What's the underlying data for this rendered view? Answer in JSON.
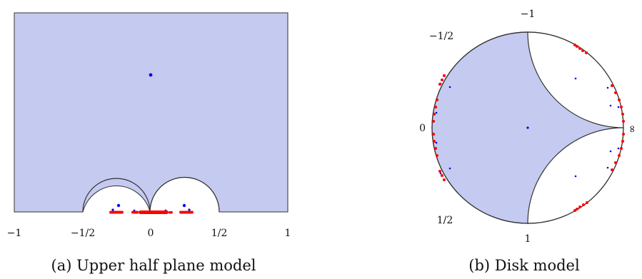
{
  "panel_a": {
    "caption": "(a) Upper half plane model",
    "tick_labels": [
      "−1",
      "−1/2",
      "0",
      "1/2",
      "1"
    ],
    "colors": {
      "region": "#c5caf0",
      "point": "#0000ff",
      "cusp_point": "#ff0000",
      "boundary": "#333333"
    }
  },
  "panel_b": {
    "caption": "(b) Disk model",
    "labels": {
      "top": "−1",
      "upper_left": "−1/2",
      "left": "0",
      "right": "∞",
      "lower_left": "1/2",
      "bottom": "1"
    },
    "colors": {
      "region": "#c5caf0",
      "point": "#0000ff",
      "cusp_point": "#ff0000",
      "boundary": "#333333"
    }
  }
}
